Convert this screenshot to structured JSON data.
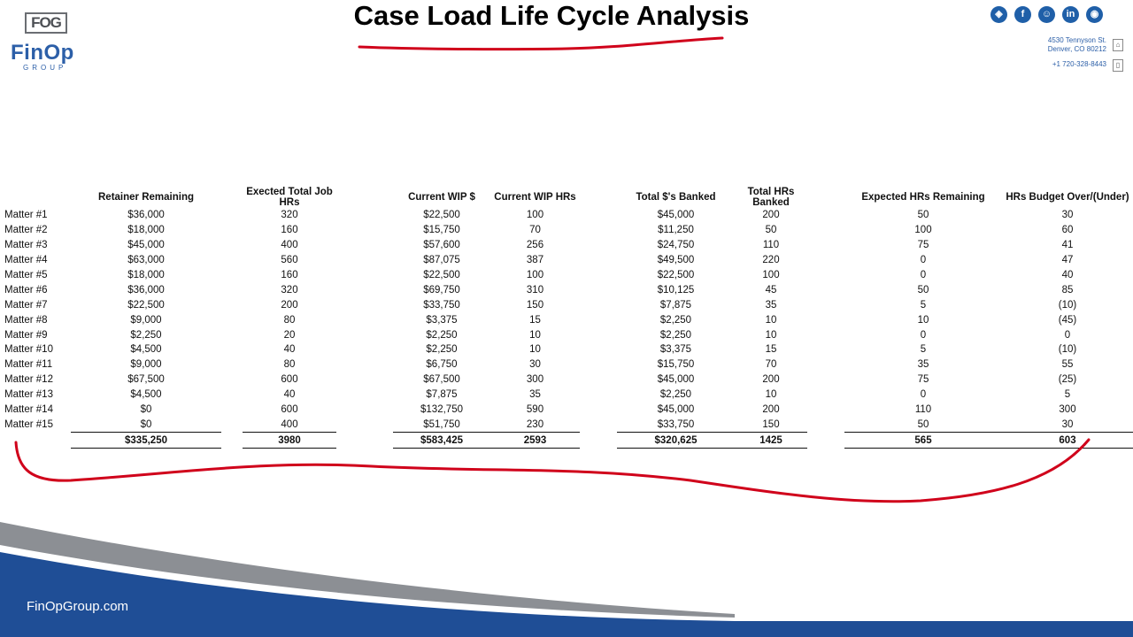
{
  "logo": {
    "box": "FOG",
    "name": "FinOp",
    "group": "GROUP"
  },
  "title": "Case Load Life Cycle Analysis",
  "social": [
    "globe-icon",
    "facebook-icon",
    "thumb-icon",
    "linkedin-icon",
    "instagram-icon"
  ],
  "contact": {
    "address1": "4530 Tennyson St.",
    "address2": "Denver, CO 80212",
    "phone": "+1 720-328-8443"
  },
  "table": {
    "headers": [
      "Retainer Remaining",
      "Exected Total Job HRs",
      "Current WIP $",
      "Current WIP HRs",
      "Total $'s Banked",
      "Total HRs Banked",
      "Expected HRs Remaining",
      "HRs Budget Over/(Under)"
    ],
    "rows": [
      [
        "Matter #1",
        "$36,000",
        "320",
        "$22,500",
        "100",
        "$45,000",
        "200",
        "50",
        "30"
      ],
      [
        "Matter #2",
        "$18,000",
        "160",
        "$15,750",
        "70",
        "$11,250",
        "50",
        "100",
        "60"
      ],
      [
        "Matter #3",
        "$45,000",
        "400",
        "$57,600",
        "256",
        "$24,750",
        "110",
        "75",
        "41"
      ],
      [
        "Matter #4",
        "$63,000",
        "560",
        "$87,075",
        "387",
        "$49,500",
        "220",
        "0",
        "47"
      ],
      [
        "Matter #5",
        "$18,000",
        "160",
        "$22,500",
        "100",
        "$22,500",
        "100",
        "0",
        "40"
      ],
      [
        "Matter #6",
        "$36,000",
        "320",
        "$69,750",
        "310",
        "$10,125",
        "45",
        "50",
        "85"
      ],
      [
        "Matter #7",
        "$22,500",
        "200",
        "$33,750",
        "150",
        "$7,875",
        "35",
        "5",
        "(10)"
      ],
      [
        "Matter #8",
        "$9,000",
        "80",
        "$3,375",
        "15",
        "$2,250",
        "10",
        "10",
        "(45)"
      ],
      [
        "Matter #9",
        "$2,250",
        "20",
        "$2,250",
        "10",
        "$2,250",
        "10",
        "0",
        "0"
      ],
      [
        "Matter #10",
        "$4,500",
        "40",
        "$2,250",
        "10",
        "$3,375",
        "15",
        "5",
        "(10)"
      ],
      [
        "Matter #11",
        "$9,000",
        "80",
        "$6,750",
        "30",
        "$15,750",
        "70",
        "35",
        "55"
      ],
      [
        "Matter #12",
        "$67,500",
        "600",
        "$67,500",
        "300",
        "$45,000",
        "200",
        "75",
        "(25)"
      ],
      [
        "Matter #13",
        "$4,500",
        "40",
        "$7,875",
        "35",
        "$2,250",
        "10",
        "0",
        "5"
      ],
      [
        "Matter #14",
        "$0",
        "600",
        "$132,750",
        "590",
        "$45,000",
        "200",
        "110",
        "300"
      ],
      [
        "Matter #15",
        "$0",
        "400",
        "$51,750",
        "230",
        "$33,750",
        "150",
        "50",
        "30"
      ]
    ],
    "totals": [
      "$335,250",
      "3980",
      "$583,425",
      "2593",
      "$320,625",
      "1425",
      "565",
      "603"
    ]
  },
  "footer": {
    "site": "FinOpGroup.com"
  },
  "colors": {
    "brand_blue": "#2c5fa8",
    "footer_blue": "#1f4e96",
    "footer_gray": "#8c8f94",
    "annotation_red": "#d0021b"
  }
}
